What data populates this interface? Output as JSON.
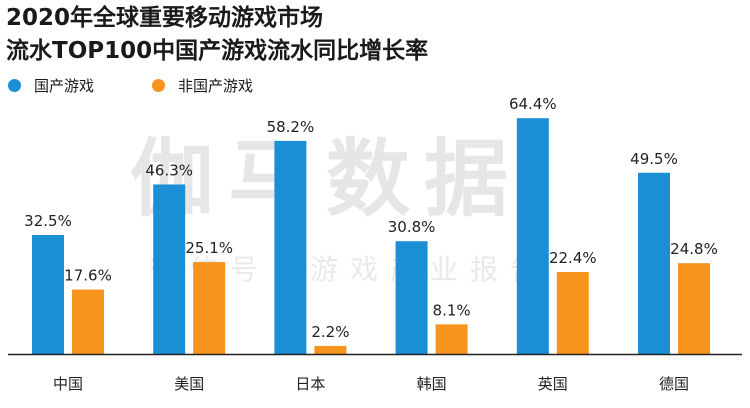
{
  "title_line1": "2020年全球重要移动游戏市场",
  "title_line2": "流水TOP100中国产游戏流水同比增长率",
  "watermark": "伽马数据",
  "watermark_sub": "微信号：游戏产业报告",
  "colors": {
    "domestic": "#1a8fd5",
    "foreign": "#f7941d",
    "axis": "#222222"
  },
  "chart_data": {
    "type": "bar",
    "title": "2020年全球重要移动游戏市场流水TOP100中国产游戏流水同比增长率",
    "categories": [
      "中国",
      "美国",
      "日本",
      "韩国",
      "英国",
      "德国"
    ],
    "series": [
      {
        "name": "国产游戏",
        "values": [
          32.5,
          46.3,
          58.2,
          30.8,
          64.4,
          49.5
        ],
        "labels": [
          "32.5%",
          "46.3%",
          "58.2%",
          "30.8%",
          "64.4%",
          "49.5%"
        ]
      },
      {
        "name": "非国产游戏",
        "values": [
          17.6,
          25.1,
          2.2,
          8.1,
          22.4,
          24.8
        ],
        "labels": [
          "17.6%",
          "25.1%",
          "2.2%",
          "8.1%",
          "22.4%",
          "24.8%"
        ]
      }
    ],
    "ylim": [
      0,
      65
    ],
    "grid": false,
    "legend": "top-left",
    "unit": "%"
  }
}
